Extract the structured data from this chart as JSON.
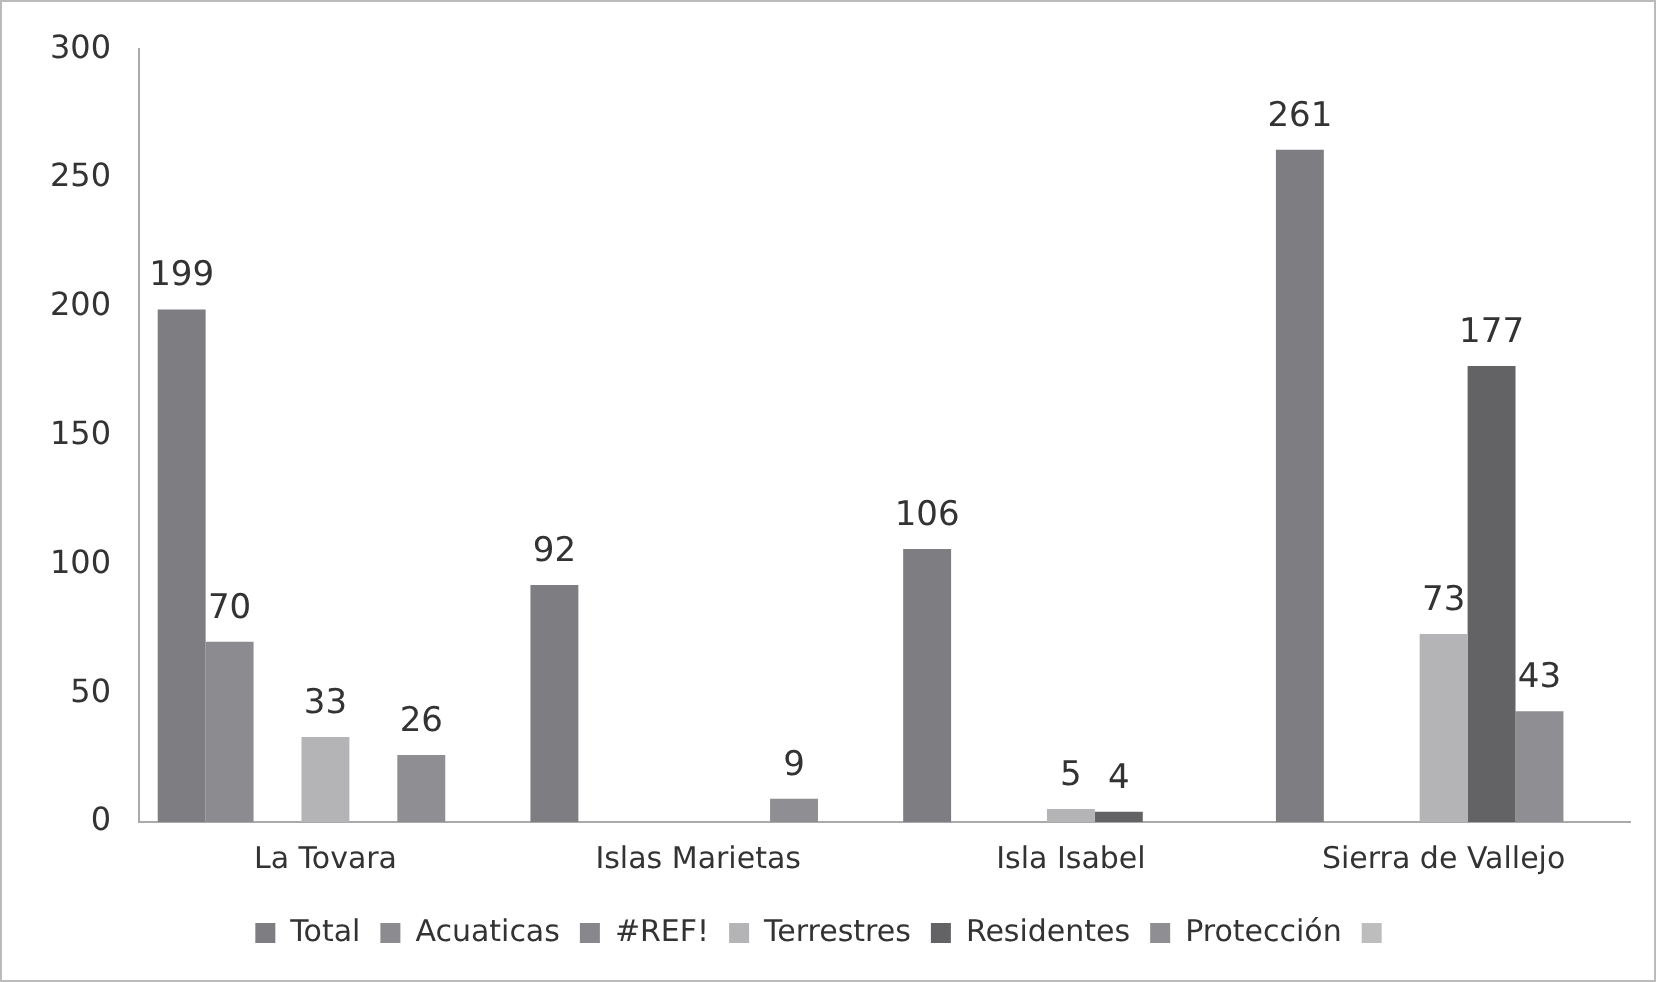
{
  "chart_data": {
    "type": "bar",
    "categories": [
      "La Tovara",
      "Islas Marietas",
      "Isla Isabel",
      "Sierra de Vallejo"
    ],
    "series": [
      {
        "name": "Total",
        "color": "#7e7e82",
        "values": [
          199,
          92,
          106,
          261
        ]
      },
      {
        "name": "Acuaticas",
        "color": "#8c8c90",
        "values": [
          70,
          null,
          null,
          null
        ]
      },
      {
        "name": "#REF!",
        "color": "#88888c",
        "values": [
          null,
          null,
          null,
          null
        ]
      },
      {
        "name": "Terrestres",
        "color": "#b4b4b6",
        "values": [
          33,
          null,
          5,
          73
        ]
      },
      {
        "name": "Residentes",
        "color": "#636366",
        "values": [
          null,
          null,
          4,
          177
        ]
      },
      {
        "name": "Protección",
        "color": "#8f8f93",
        "values": [
          26,
          9,
          null,
          43
        ]
      },
      {
        "color": "#bdbdbd",
        "values": [
          null,
          null,
          null,
          null
        ]
      }
    ],
    "ylim": [
      0,
      300
    ],
    "yticks": [
      0,
      50,
      100,
      150,
      200,
      250,
      300
    ],
    "grid": false,
    "legend": "bottom",
    "data_labels": true
  }
}
